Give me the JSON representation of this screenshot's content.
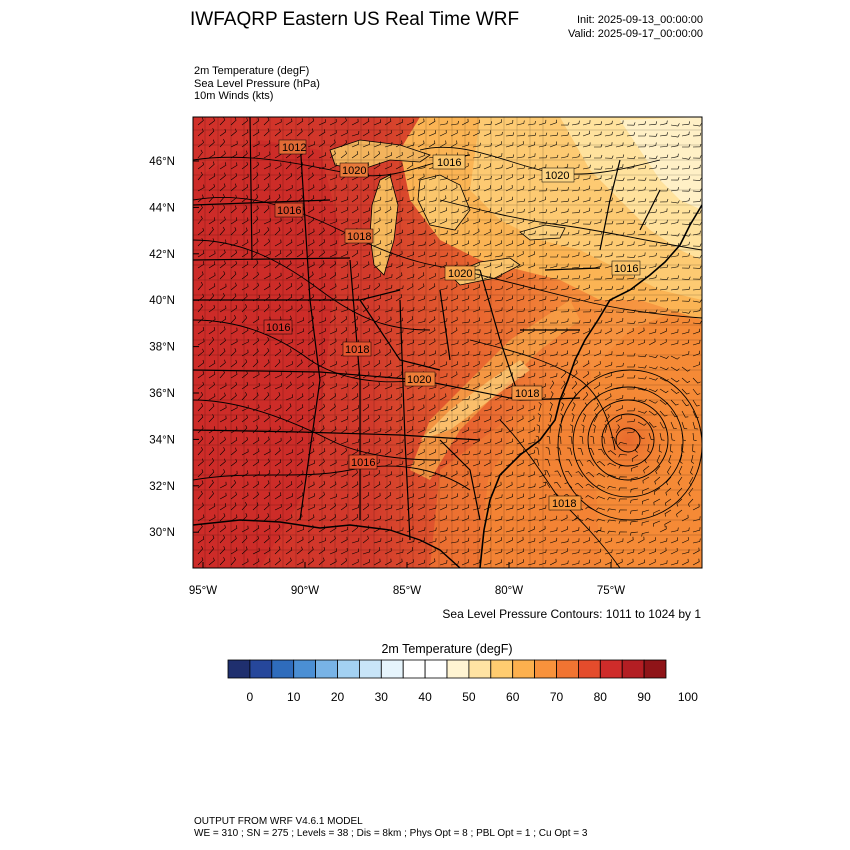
{
  "title": "IWFAQRP Eastern US Real Time WRF",
  "init": "Init: 2025-09-13_00:00:00",
  "valid": "Valid: 2025-09-17_00:00:00",
  "fields": [
    "2m Temperature   (degF)",
    "Sea Level Pressure   (hPa)",
    "10m Winds   (kts)"
  ],
  "contour_note": "Sea Level Pressure Contours: 1011 to 1024 by 1",
  "colorbar": {
    "title": "2m Temperature  (degF)",
    "colors": [
      "#1f2f6e",
      "#26479b",
      "#2f6cbc",
      "#4b8fd4",
      "#78b3e6",
      "#a3d1f2",
      "#c8e5f8",
      "#e6f4fc",
      "#ffffff",
      "#ffffff",
      "#fff4d2",
      "#ffe3a3",
      "#ffcc70",
      "#fcb04e",
      "#f8923c",
      "#f17432",
      "#e44c2c",
      "#cf2c2a",
      "#b31e23",
      "#8f1418"
    ],
    "labels": [
      "0",
      "10",
      "20",
      "30",
      "40",
      "50",
      "60",
      "70",
      "80",
      "90",
      "100"
    ]
  },
  "lat_labels": [
    "46°N",
    "44°N",
    "42°N",
    "40°N",
    "38°N",
    "36°N",
    "34°N",
    "32°N",
    "30°N"
  ],
  "lon_labels": [
    "95°W",
    "90°W",
    "85°W",
    "80°W",
    "75°W"
  ],
  "pressure_labels": [
    "1012",
    "1016",
    "1020",
    "1016",
    "1018",
    "1020",
    "1016",
    "1016",
    "1018",
    "1020",
    "1018",
    "1016",
    "1020",
    "1018"
  ],
  "footer": [
    "OUTPUT FROM WRF V4.6.1 MODEL",
    "WE = 310 ; SN = 275 ; Levels = 38 ; Dis = 8km ; Phys Opt = 8 ; PBL Opt = 1 ; Cu Opt = 3"
  ],
  "lat_values": [
    46,
    44,
    42,
    40,
    38,
    36,
    34,
    32,
    30
  ],
  "lon_values": [
    -95,
    -90,
    -85,
    -80,
    -75
  ]
}
